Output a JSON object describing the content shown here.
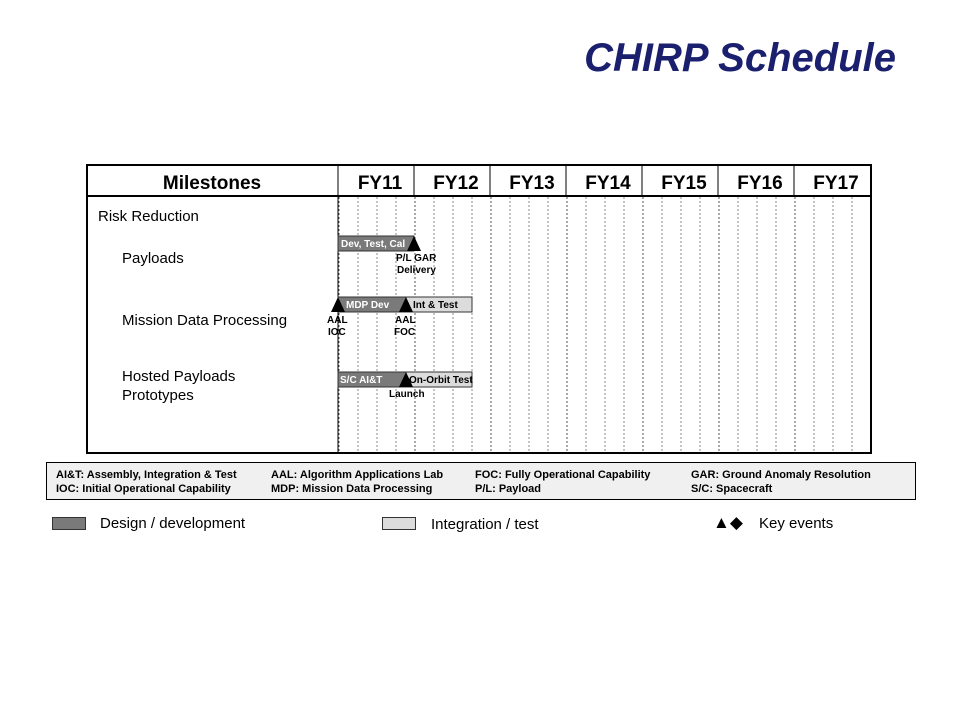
{
  "title": "CHIRP Schedule",
  "header": {
    "milestones_label": "Milestones",
    "fiscal_years": [
      "FY11",
      "FY12",
      "FY13",
      "FY14",
      "FY15",
      "FY16",
      "FY17"
    ]
  },
  "rows": {
    "risk_reduction": "Risk Reduction",
    "payloads": "Payloads",
    "mission_data_processing": "Mission Data Processing",
    "hosted_payloads_line1": "Hosted Payloads",
    "hosted_payloads_line2": "Prototypes"
  },
  "bars": {
    "payloads_dev": "Dev, Test, Cal",
    "mdp_dev": "MDP Dev",
    "mdp_int": "Int & Test",
    "hp_sc": "S/C AI&T",
    "hp_test": "On-Orbit Test"
  },
  "annotations": {
    "pl_gar_1": "P/L GAR",
    "pl_gar_2": "Delivery",
    "aal_ioc_1": "AAL",
    "aal_ioc_2": "IOC",
    "aal_foc_1": "AAL",
    "aal_foc_2": "FOC",
    "launch": "Launch"
  },
  "glossary": {
    "col1_line1": "AI&T: Assembly, Integration & Test",
    "col1_line2": "IOC: Initial Operational Capability",
    "col2_line1": "AAL: Algorithm Applications Lab",
    "col2_line2": "MDP: Mission Data Processing",
    "col3_line1": "FOC: Fully Operational Capability",
    "col3_line2": "P/L: Payload",
    "col4_line1": "GAR: Ground Anomaly Resolution",
    "col4_line2": "S/C: Spacecraft"
  },
  "legend": {
    "design": "Design / development",
    "integration": "Integration / test",
    "key_events_symbols": "▲◆",
    "key_events": "Key events"
  },
  "colors": {
    "title": "#1a1f6e",
    "design_bar": "#7a7a7a",
    "integration_bar": "#dcdcdc",
    "milestone": "#000000",
    "glossary_bg": "#f0f0f0"
  }
}
